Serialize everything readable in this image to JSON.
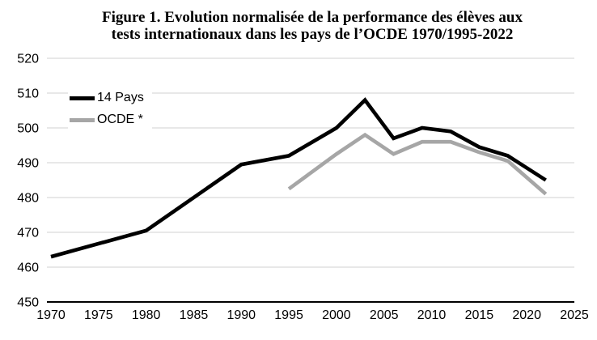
{
  "title": {
    "line1": "Figure 1. Evolution normalisée de la performance des élèves aux",
    "line2": "tests internationaux dans les pays de l’OCDE 1970/1995-2022"
  },
  "colors": {
    "axis": "#000000",
    "gridline": "#d9d9d9",
    "label": "#000000",
    "background": "#ffffff",
    "series_14_pays": "#000000",
    "series_ocde": "#a6a6a6"
  },
  "chart_data": {
    "type": "line",
    "title": "Figure 1. Evolution normalisée de la performance des élèves aux tests internationaux dans les pays de l’OCDE 1970/1995-2022",
    "xlabel": "",
    "ylabel": "",
    "xlim": [
      1970,
      2025
    ],
    "ylim": [
      450,
      520
    ],
    "x_ticks": [
      "1970",
      "1975",
      "1980",
      "1985",
      "1990",
      "1995",
      "2000",
      "2005",
      "2010",
      "2015",
      "2020",
      "2025"
    ],
    "y_ticks": [
      "450",
      "460",
      "470",
      "480",
      "490",
      "500",
      "510",
      "520"
    ],
    "grid": "horizontal-only",
    "legend_position": "top-left-inside",
    "series": [
      {
        "name": "14 Pays",
        "color": "#000000",
        "points": [
          [
            1970,
            463
          ],
          [
            1980,
            470.5
          ],
          [
            1990,
            489.5
          ],
          [
            1995,
            492
          ],
          [
            2000,
            500
          ],
          [
            2003,
            508
          ],
          [
            2006,
            497
          ],
          [
            2009,
            500
          ],
          [
            2012,
            499
          ],
          [
            2015,
            494.5
          ],
          [
            2018,
            492
          ],
          [
            2022,
            485
          ]
        ]
      },
      {
        "name": "OCDE *",
        "color": "#a6a6a6",
        "points": [
          [
            1995,
            482.5
          ],
          [
            2000,
            492.5
          ],
          [
            2003,
            498
          ],
          [
            2006,
            492.5
          ],
          [
            2009,
            496
          ],
          [
            2012,
            496
          ],
          [
            2015,
            493
          ],
          [
            2018,
            490.5
          ],
          [
            2022,
            481
          ]
        ]
      }
    ]
  }
}
